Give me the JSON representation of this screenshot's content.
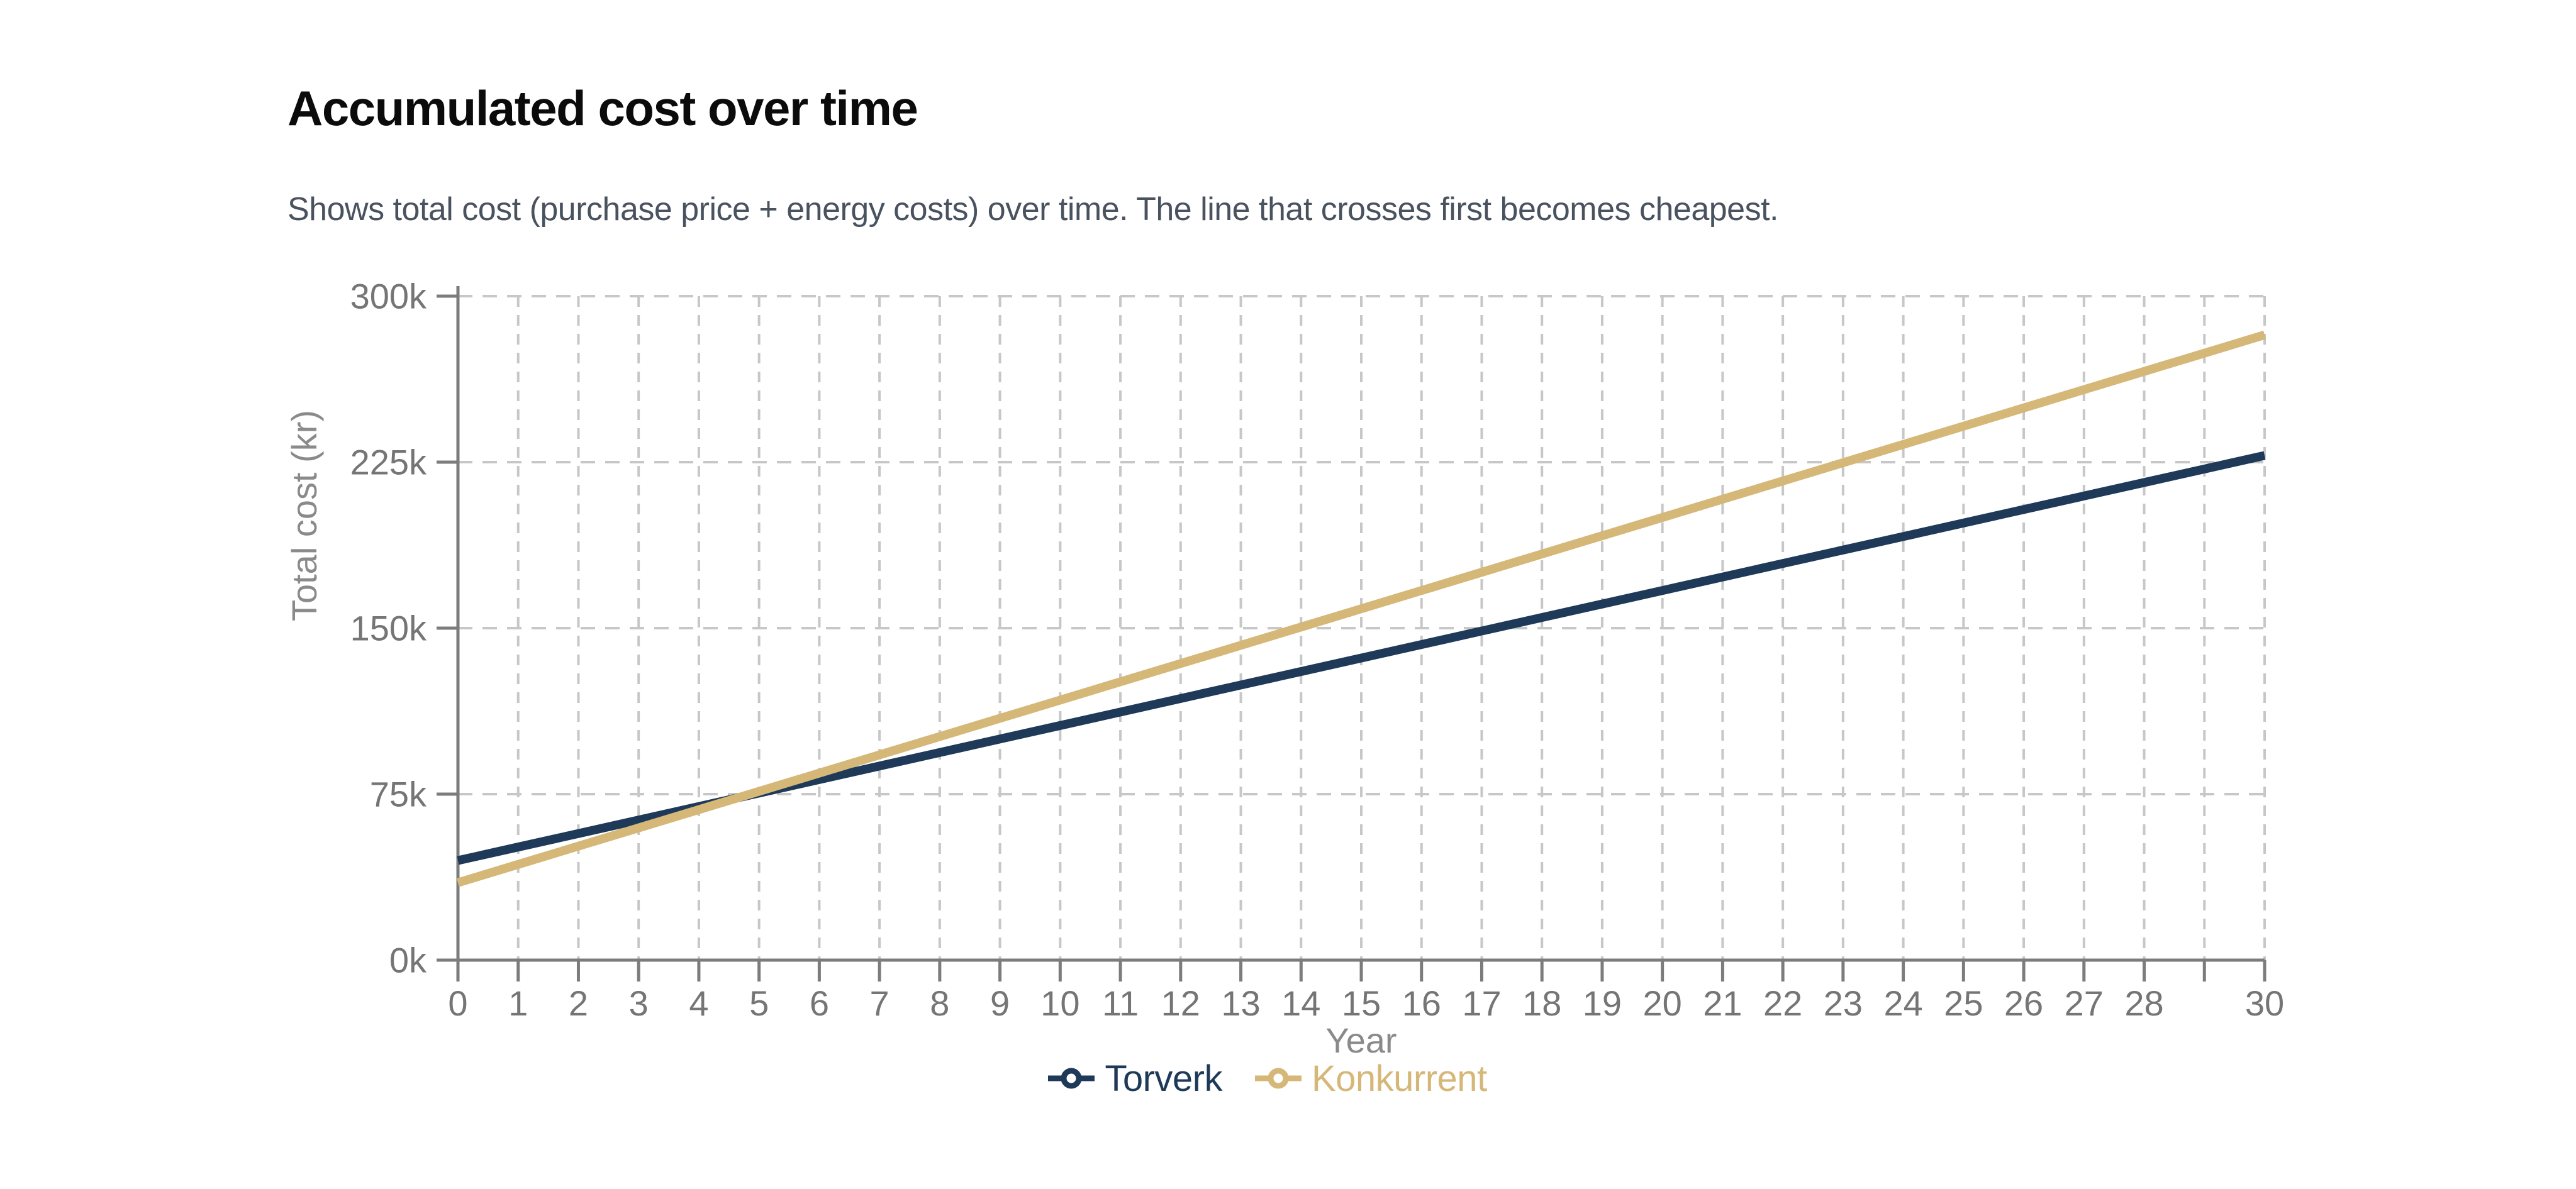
{
  "header": {
    "title": "Accumulated cost over time",
    "subtitle": "Shows total cost (purchase price + energy costs) over time. The line that crosses first becomes cheapest."
  },
  "chart_data": {
    "type": "line",
    "title": "Accumulated cost over time",
    "xlabel": "Year",
    "ylabel": "Total cost (kr)",
    "xlim": [
      0,
      30
    ],
    "ylim": [
      0,
      300000
    ],
    "grid": "dashed",
    "legend_position": "bottom",
    "x": [
      0,
      1,
      2,
      3,
      4,
      5,
      6,
      7,
      8,
      9,
      10,
      11,
      12,
      13,
      14,
      15,
      16,
      17,
      18,
      19,
      20,
      21,
      22,
      23,
      24,
      25,
      26,
      27,
      28,
      29,
      30
    ],
    "xtick_labels": [
      "0",
      "1",
      "2",
      "3",
      "4",
      "5",
      "6",
      "7",
      "8",
      "9",
      "10",
      "11",
      "12",
      "13",
      "14",
      "15",
      "16",
      "17",
      "18",
      "19",
      "20",
      "21",
      "22",
      "23",
      "24",
      "25",
      "26",
      "27",
      "28",
      "",
      "30"
    ],
    "yticks": [
      {
        "value": 0,
        "label": "0k"
      },
      {
        "value": 75000,
        "label": "75k"
      },
      {
        "value": 150000,
        "label": "150k"
      },
      {
        "value": 225000,
        "label": "225k"
      },
      {
        "value": 300000,
        "label": "300k"
      }
    ],
    "series": [
      {
        "name": "Torverk",
        "color": "#1e3a58",
        "marker": "line-circle",
        "values": [
          45000,
          51100,
          57200,
          63300,
          69400,
          75500,
          81600,
          87700,
          93800,
          99900,
          106000,
          112100,
          118200,
          124300,
          130400,
          136500,
          142600,
          148700,
          154800,
          160900,
          167000,
          173100,
          179200,
          185300,
          191400,
          197500,
          203600,
          209700,
          215800,
          221900,
          228000
        ]
      },
      {
        "name": "Konkurrent",
        "color": "#d5b778",
        "marker": "line-circle",
        "values": [
          35000,
          43250,
          51500,
          59750,
          68000,
          76250,
          84500,
          92750,
          101000,
          109250,
          117500,
          125750,
          134000,
          142250,
          150500,
          158750,
          167000,
          175250,
          183500,
          191750,
          200000,
          208250,
          216500,
          224750,
          233000,
          241250,
          249500,
          257750,
          266000,
          274250,
          282500
        ]
      }
    ],
    "style": {
      "axis_color": "#7c7c7c",
      "grid_color": "#c7c7c7",
      "tick_label_color": "#757575",
      "axis_title_color": "#8a8a8a"
    }
  }
}
